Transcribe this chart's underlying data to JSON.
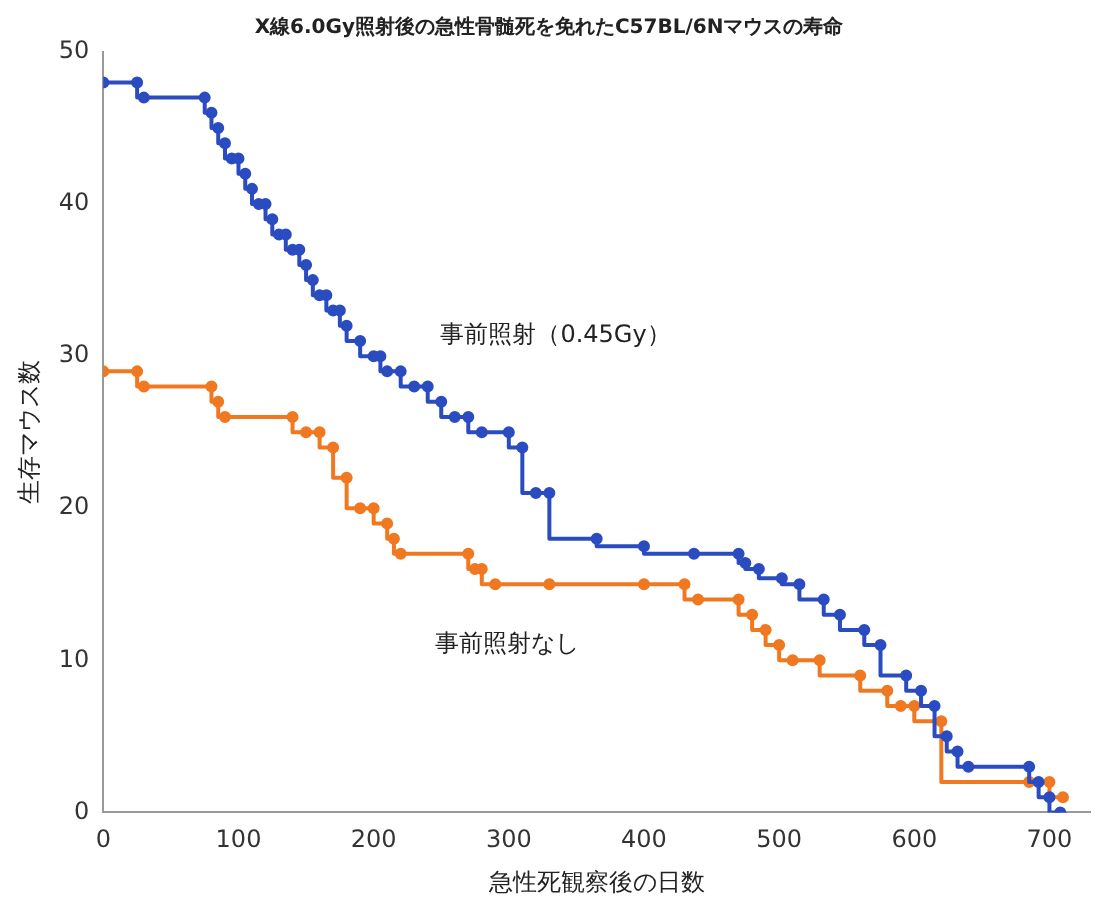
{
  "chart_data": {
    "type": "step",
    "title": "X線6.0Gy照射後の急性骨髄死を免れたC57BL/6Nマウスの寿命",
    "xlabel": "急性死観察後の日数",
    "ylabel": "生存マウス数",
    "xlim": [
      0,
      730
    ],
    "xticks": [
      0,
      100,
      200,
      300,
      400,
      500,
      600,
      700
    ],
    "ylim": [
      0,
      50
    ],
    "yticks": [
      0,
      10,
      20,
      30,
      40,
      50
    ],
    "grid": false,
    "legend": false,
    "marker": "circle",
    "line_style": "solid",
    "series": [
      {
        "name": "事前照射（0.45Gy）",
        "color": "#2a4cc0",
        "x": [
          0,
          25,
          30,
          75,
          80,
          85,
          90,
          95,
          100,
          105,
          110,
          115,
          120,
          125,
          130,
          135,
          140,
          145,
          150,
          155,
          160,
          165,
          170,
          175,
          180,
          190,
          200,
          205,
          210,
          220,
          230,
          240,
          250,
          260,
          270,
          280,
          300,
          310,
          320,
          330,
          365,
          400,
          437,
          470,
          475,
          485,
          502,
          515,
          533,
          545,
          563,
          575,
          594,
          605,
          615,
          624,
          632,
          640,
          685,
          692,
          700,
          708
        ],
        "values": [
          48,
          48,
          47,
          47,
          46,
          45,
          44,
          43,
          43,
          42,
          41,
          40,
          40,
          39,
          38,
          38,
          37,
          37,
          36,
          35,
          34,
          34,
          33,
          33,
          32,
          31,
          30,
          30,
          29,
          29,
          28,
          28,
          27,
          26,
          26,
          25,
          25,
          24,
          21,
          21,
          18,
          17.5,
          17,
          17,
          16.4,
          16,
          15.4,
          15,
          14,
          13,
          12,
          11,
          9,
          8,
          7,
          5,
          4,
          3,
          3,
          2,
          1,
          0
        ]
      },
      {
        "name": "事前照射なし",
        "color": "#f07820",
        "x": [
          0,
          25,
          30,
          80,
          85,
          90,
          140,
          150,
          160,
          170,
          180,
          190,
          200,
          210,
          215,
          220,
          270,
          275,
          280,
          290,
          330,
          400,
          430,
          440,
          470,
          480,
          490,
          500,
          510,
          530,
          560,
          580,
          590,
          600,
          620,
          685,
          700,
          710
        ],
        "values": [
          29,
          29,
          28,
          28,
          27,
          26,
          26,
          25,
          25,
          24,
          22,
          20,
          20,
          19,
          18,
          17,
          17,
          16,
          16,
          15,
          15,
          15,
          15,
          14,
          14,
          13,
          12,
          11,
          10,
          10,
          9,
          8,
          7,
          7,
          6,
          2,
          2,
          1
        ]
      }
    ]
  }
}
